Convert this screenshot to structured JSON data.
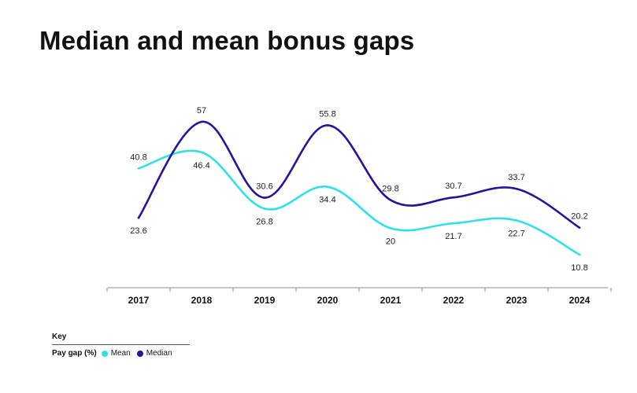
{
  "title": "Median and mean bonus gaps",
  "key": {
    "heading": "Key",
    "label": "Pay gap (%)"
  },
  "colors": {
    "mean": "#2fe0e6",
    "median": "#241596",
    "axis": "#888888"
  },
  "chart_data": {
    "type": "line",
    "title": "Median and mean bonus gaps",
    "xlabel": "",
    "ylabel": "",
    "grid": false,
    "legend": "bottom-left",
    "ylim": [
      10,
      60
    ],
    "categories": [
      "2017",
      "2018",
      "2019",
      "2020",
      "2021",
      "2022",
      "2023",
      "2024"
    ],
    "series": [
      {
        "name": "Mean",
        "values": [
          40.8,
          46.4,
          26.8,
          34.4,
          20,
          21.7,
          22.7,
          10.8
        ]
      },
      {
        "name": "Median",
        "values": [
          23.6,
          57,
          30.6,
          55.8,
          29.8,
          30.7,
          33.7,
          20.2
        ]
      }
    ]
  }
}
